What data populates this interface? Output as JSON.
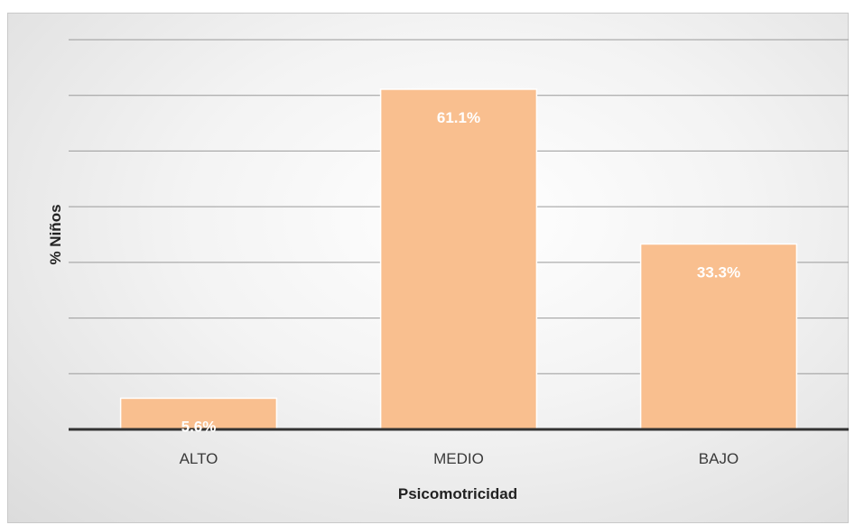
{
  "chart_data": {
    "type": "bar",
    "categories": [
      "ALTO",
      "MEDIO",
      "BAJO"
    ],
    "values": [
      5.6,
      61.1,
      33.3
    ],
    "data_labels": [
      "5.6%",
      "61.1%",
      "33.3%"
    ],
    "xlabel": "Psicomotricidad",
    "ylabel": "% Niños",
    "ylim": [
      0,
      70
    ],
    "grid": true,
    "bar_color": "#f9bf8f",
    "legend": "none"
  }
}
